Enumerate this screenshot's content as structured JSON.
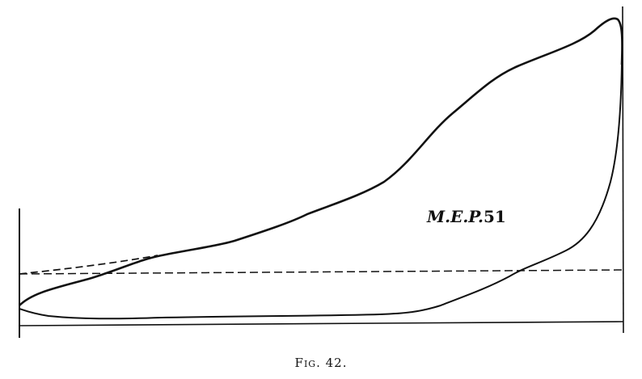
{
  "diagram": {
    "label_prefix": "M.E.P.",
    "label_value": "51",
    "caption": "Fig. 42."
  }
}
